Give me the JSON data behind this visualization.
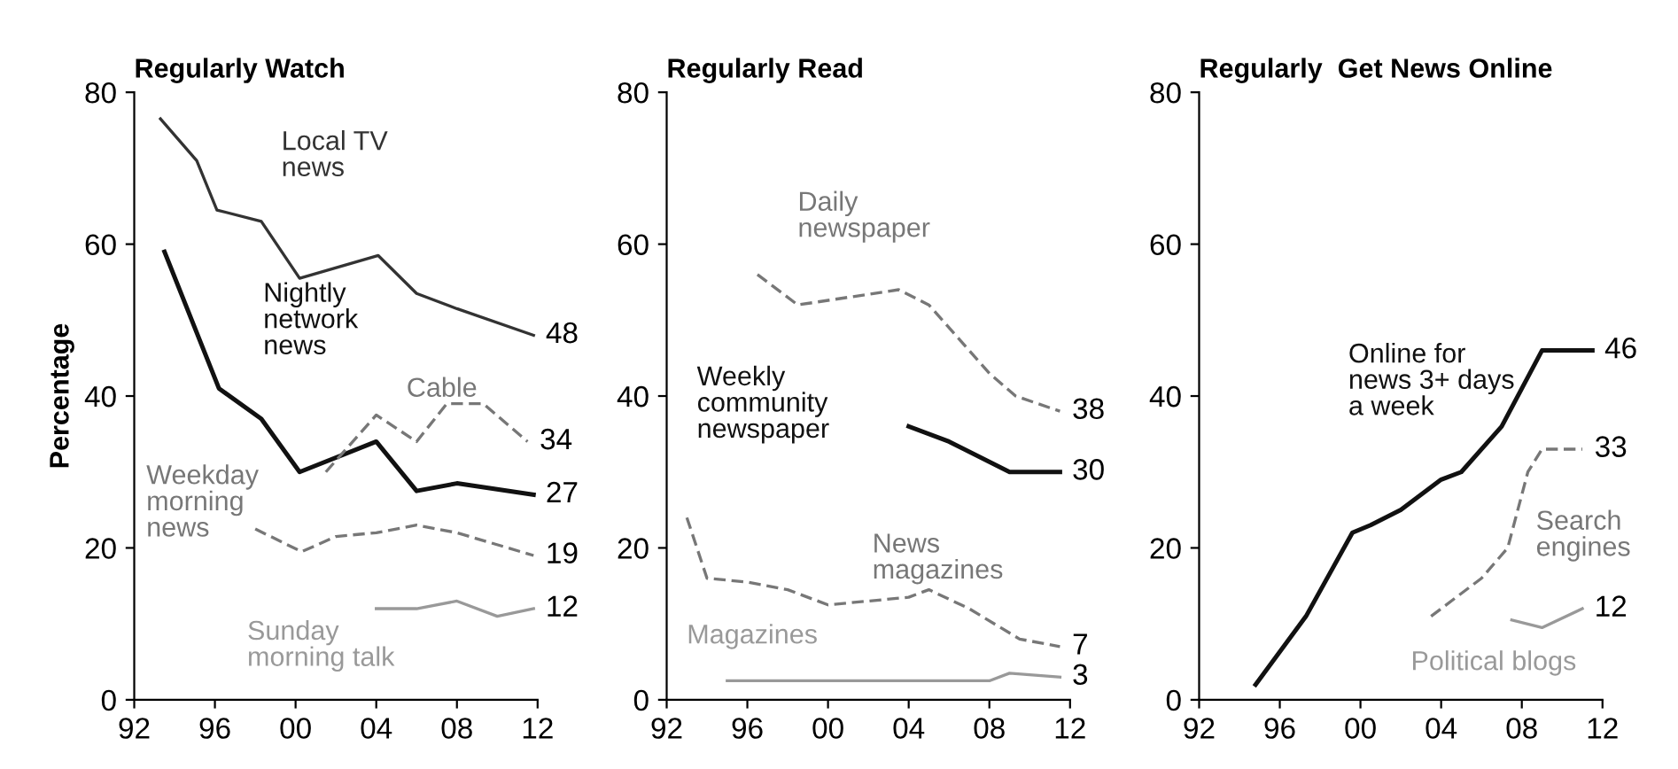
{
  "chart_data": [
    {
      "type": "line",
      "title": "Regularly Watch",
      "ylabel": "Percentage",
      "xlim": [
        1992,
        2012
      ],
      "ylim": [
        0,
        80
      ],
      "yticks": [
        0,
        20,
        40,
        60,
        80
      ],
      "xticks": [
        {
          "value": 1992,
          "label": "92"
        },
        {
          "value": 1996,
          "label": "96"
        },
        {
          "value": 2000,
          "label": "00"
        },
        {
          "value": 2004,
          "label": "04"
        },
        {
          "value": 2008,
          "label": "08"
        },
        {
          "value": 2012,
          "label": "12"
        }
      ],
      "grid": false,
      "legend": false,
      "marker": "none",
      "series": [
        {
          "name": "Local TV news",
          "color": "#333333",
          "line_style": "solid",
          "x": [
            1993.3,
            1995.1,
            1996.1,
            1998.3,
            2000.2,
            2004.1,
            2006,
            2008,
            2011.8
          ],
          "values": [
            76.5,
            71,
            64.5,
            63,
            55.5,
            58.5,
            53.5,
            51.5,
            48
          ],
          "value_labels": [
            null,
            null,
            null,
            null,
            null,
            null,
            null,
            null,
            "48"
          ]
        },
        {
          "name": "Nightly network news",
          "color": "#111111",
          "line_style": "solid",
          "x": [
            1993.5,
            1996.2,
            1998.3,
            2000.2,
            2004,
            2006,
            2008,
            2011.8
          ],
          "values": [
            59,
            41,
            37,
            30,
            34,
            27.5,
            28.5,
            27
          ],
          "value_labels": [
            null,
            null,
            null,
            null,
            null,
            null,
            null,
            "27"
          ]
        },
        {
          "name": "Cable",
          "color": "#777777",
          "line_style": "dashed",
          "x": [
            2001.5,
            2004,
            2006,
            2007.5,
            2009.3,
            2011.5
          ],
          "values": [
            30,
            37.5,
            34,
            39,
            39,
            34
          ],
          "value_labels": [
            null,
            null,
            null,
            null,
            null,
            "34"
          ]
        },
        {
          "name": "Weekday morning news",
          "color": "#777777",
          "line_style": "dashed",
          "x": [
            1998,
            2000.3,
            2002,
            2004,
            2006,
            2008,
            2011.8
          ],
          "values": [
            22.5,
            19.5,
            21.5,
            22,
            23,
            22,
            19
          ],
          "value_labels": [
            null,
            null,
            null,
            null,
            null,
            null,
            "19"
          ]
        },
        {
          "name": "Sunday morning talk",
          "color": "#999999",
          "line_style": "solid",
          "x": [
            2004,
            2006,
            2008,
            2010,
            2011.8
          ],
          "values": [
            12,
            12,
            13,
            11,
            12
          ],
          "value_labels": [
            null,
            null,
            null,
            null,
            "12"
          ]
        }
      ]
    },
    {
      "type": "line",
      "title": "Regularly Read",
      "xlim": [
        1992,
        2012
      ],
      "ylim": [
        0,
        80
      ],
      "yticks": [
        0,
        20,
        40,
        60,
        80
      ],
      "xticks": [
        {
          "value": 1992,
          "label": "92"
        },
        {
          "value": 1996,
          "label": "96"
        },
        {
          "value": 2000,
          "label": "00"
        },
        {
          "value": 2004,
          "label": "04"
        },
        {
          "value": 2008,
          "label": "08"
        },
        {
          "value": 2012,
          "label": "12"
        }
      ],
      "grid": false,
      "legend": false,
      "marker": "none",
      "series": [
        {
          "name": "Daily newspaper",
          "color": "#777777",
          "line_style": "dashed",
          "x": [
            1996.5,
            1998.5,
            2003.5,
            2005,
            2008,
            2009.3,
            2011.5
          ],
          "values": [
            56,
            52,
            54,
            52,
            43,
            40,
            38
          ],
          "value_labels": [
            null,
            null,
            null,
            null,
            null,
            null,
            "38"
          ]
        },
        {
          "name": "Weekly community newspaper",
          "color": "#111111",
          "line_style": "solid",
          "x": [
            2004,
            2006,
            2009,
            2011.5
          ],
          "values": [
            36,
            34,
            30,
            30
          ],
          "value_labels": [
            null,
            null,
            null,
            "30"
          ]
        },
        {
          "name": "News magazines",
          "color": "#777777",
          "line_style": "dashed",
          "x": [
            1993,
            1994,
            1996,
            1998,
            2000,
            2004,
            2005,
            2007,
            2009.5,
            2011.5
          ],
          "values": [
            24,
            16,
            15.5,
            14.5,
            12.5,
            13.5,
            14.5,
            12,
            8,
            7
          ],
          "value_labels": [
            null,
            null,
            null,
            null,
            null,
            null,
            null,
            null,
            null,
            "7"
          ]
        },
        {
          "name": "Magazines",
          "color": "#999999",
          "line_style": "solid",
          "x": [
            1995,
            2000,
            2008,
            2009,
            2011.5
          ],
          "values": [
            2.5,
            2.5,
            2.5,
            3.5,
            3
          ],
          "value_labels": [
            null,
            null,
            null,
            null,
            "3"
          ]
        }
      ]
    },
    {
      "type": "line",
      "title": "Regularly  Get News Online",
      "xlim": [
        1992,
        2012
      ],
      "ylim": [
        0,
        80
      ],
      "yticks": [
        0,
        20,
        40,
        60,
        80
      ],
      "xticks": [
        {
          "value": 1992,
          "label": "92"
        },
        {
          "value": 1996,
          "label": "96"
        },
        {
          "value": 2000,
          "label": "00"
        },
        {
          "value": 2004,
          "label": "04"
        },
        {
          "value": 2008,
          "label": "08"
        },
        {
          "value": 2012,
          "label": "12"
        }
      ],
      "grid": false,
      "legend": false,
      "marker": "none",
      "series": [
        {
          "name": "Online for news 3+ days a week",
          "color": "#111111",
          "line_style": "solid",
          "x": [
            1994.8,
            1997.3,
            1999.6,
            2000.5,
            2002,
            2004,
            2005,
            2007,
            2009,
            2011.5
          ],
          "values": [
            2,
            11,
            22,
            23,
            25,
            29,
            30,
            36,
            46,
            46
          ],
          "value_labels": [
            null,
            null,
            null,
            null,
            null,
            null,
            null,
            null,
            null,
            "46"
          ]
        },
        {
          "name": "Search engines",
          "color": "#777777",
          "line_style": "dashed",
          "x": [
            2003.5,
            2006,
            2007.3,
            2008.3,
            2009,
            2011
          ],
          "values": [
            11,
            16,
            20,
            30,
            33,
            33
          ],
          "value_labels": [
            null,
            null,
            null,
            null,
            null,
            "33"
          ]
        },
        {
          "name": "Political blogs",
          "color": "#999999",
          "line_style": "solid",
          "x": [
            2007.5,
            2009,
            2011
          ],
          "values": [
            10.5,
            9.5,
            12
          ],
          "value_labels": [
            null,
            null,
            "12"
          ]
        }
      ]
    }
  ]
}
